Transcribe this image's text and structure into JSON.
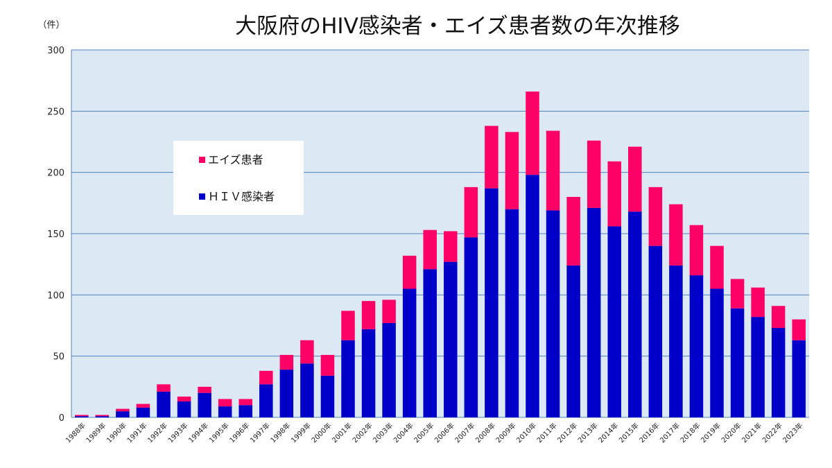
{
  "chart_data": {
    "type": "bar",
    "stacked": true,
    "title": "大阪府のHIV感染者・エイズ患者数の年次推移",
    "ylabel": "（件）",
    "xlabel": "",
    "ylim": [
      0,
      300
    ],
    "yticks": [
      0,
      50,
      100,
      150,
      200,
      250,
      300
    ],
    "grid": true,
    "legend_position": "upper-left",
    "categories": [
      "1988年",
      "1989年",
      "1990年",
      "1991年",
      "1992年",
      "1993年",
      "1994年",
      "1995年",
      "1996年",
      "1997年",
      "1998年",
      "1999年",
      "2000年",
      "2001年",
      "2002年",
      "2003年",
      "2004年",
      "2005年",
      "2006年",
      "2007年",
      "2008年",
      "2009年",
      "2010年",
      "2011年",
      "2012年",
      "2013年",
      "2014年",
      "2015年",
      "2016年",
      "2017年",
      "2018年",
      "2019年",
      "2020年",
      "2021年",
      "2022年",
      "2023年"
    ],
    "series": [
      {
        "name": "ＨＩＶ感染者",
        "color": "#0000c8",
        "values": [
          1,
          1,
          5,
          8,
          21,
          13,
          20,
          9,
          10,
          27,
          39,
          44,
          34,
          63,
          72,
          77,
          105,
          121,
          127,
          147,
          187,
          170,
          198,
          169,
          124,
          171,
          156,
          168,
          140,
          124,
          116,
          105,
          89,
          82,
          73,
          63
        ]
      },
      {
        "name": "エイズ患者",
        "color": "#ff0066",
        "values": [
          1,
          1,
          2,
          3,
          6,
          4,
          5,
          6,
          5,
          11,
          12,
          19,
          17,
          24,
          23,
          19,
          27,
          32,
          25,
          41,
          51,
          63,
          68,
          65,
          56,
          55,
          53,
          53,
          48,
          50,
          41,
          35,
          24,
          24,
          18,
          17
        ]
      }
    ],
    "legend_order": [
      1,
      0
    ],
    "plot_background": "#dce9f5",
    "grid_color": "#4f81bd"
  }
}
